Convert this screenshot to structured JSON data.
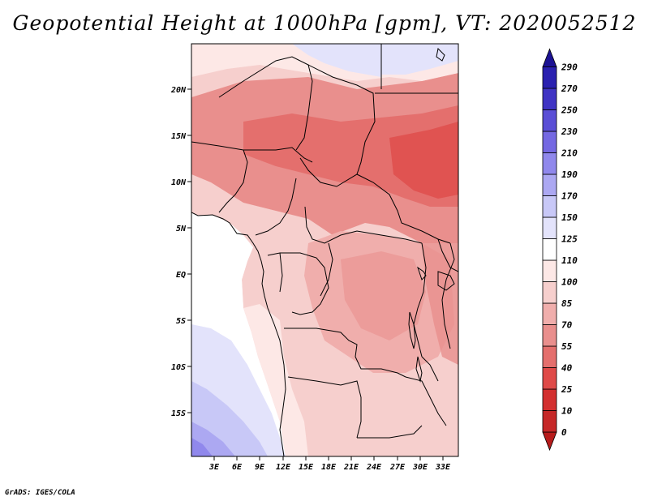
{
  "title": "Geopotential Height at 1000hPa [gpm], VT: 2020052512",
  "footer": "GrADS: IGES/COLA",
  "map": {
    "lat_labels": [
      "20N",
      "15N",
      "10N",
      "5N",
      "EQ",
      "5S",
      "10S",
      "15S"
    ],
    "lon_labels": [
      "3E",
      "6E",
      "9E",
      "12E",
      "15E",
      "18E",
      "21E",
      "24E",
      "27E",
      "30E",
      "33E"
    ]
  },
  "colorbar": {
    "labels": [
      "0",
      "10",
      "25",
      "40",
      "55",
      "70",
      "85",
      "100",
      "110",
      "125",
      "150",
      "170",
      "190",
      "210",
      "230",
      "250",
      "270",
      "290"
    ],
    "colors": [
      "#b71c1c",
      "#c62828",
      "#d32f2f",
      "#df4a48",
      "#e46f6d",
      "#e98f8d",
      "#f0aeac",
      "#f6cfcd",
      "#fde8e6",
      "#ffffff",
      "#e3e3fb",
      "#c8c8f7",
      "#aca8f2",
      "#9088ec",
      "#7468e2",
      "#5a4ed6",
      "#4034c4",
      "#2a20b0",
      "#1c1293"
    ]
  }
}
